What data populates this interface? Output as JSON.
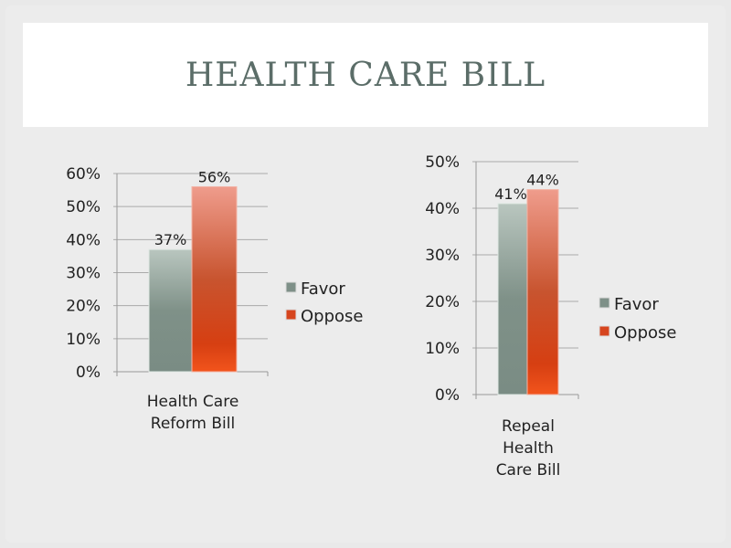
{
  "title": "HEALTH CARE BILL",
  "chart_data": [
    {
      "type": "bar",
      "categories": [
        "Health Care Reform Bill"
      ],
      "category_lines": [
        "Health Care",
        "Reform Bill"
      ],
      "series": [
        {
          "name": "Favor",
          "values": [
            37
          ],
          "label": "37%",
          "color": "#7e9088"
        },
        {
          "name": "Oppose",
          "values": [
            56
          ],
          "label": "56%",
          "color": "#d6451e"
        }
      ],
      "ylim": [
        0,
        60
      ],
      "yticks": [
        "0%",
        "10%",
        "20%",
        "30%",
        "40%",
        "50%",
        "60%"
      ],
      "legend": "right",
      "grid": true
    },
    {
      "type": "bar",
      "categories": [
        "Repeal Health Care Bill"
      ],
      "category_lines": [
        "Repeal",
        "Health",
        "Care Bill"
      ],
      "series": [
        {
          "name": "Favor",
          "values": [
            41
          ],
          "label": "41%",
          "color": "#7e9088"
        },
        {
          "name": "Oppose",
          "values": [
            44
          ],
          "label": "44%",
          "color": "#d6451e"
        }
      ],
      "ylim": [
        0,
        50
      ],
      "yticks": [
        "0%",
        "10%",
        "20%",
        "30%",
        "40%",
        "50%"
      ],
      "legend": "right",
      "grid": true
    }
  ]
}
